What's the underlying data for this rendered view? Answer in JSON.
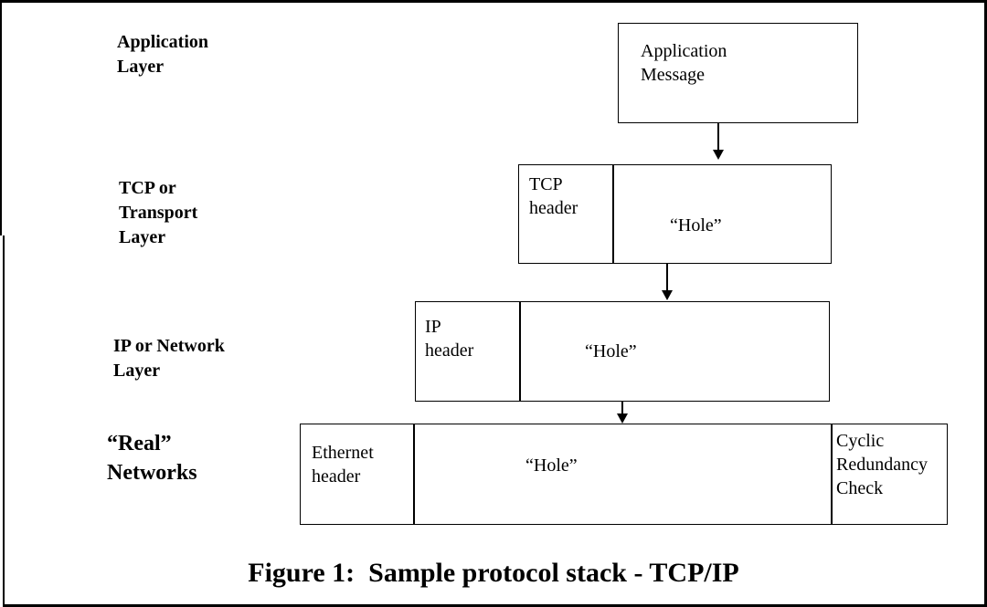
{
  "layers": {
    "application": "Application\nLayer",
    "transport": "TCP or\nTransport\nLayer",
    "network": "IP or Network\nLayer",
    "real": "“Real”\nNetworks"
  },
  "boxes": {
    "application_message": "Application\nMessage",
    "tcp_header": "TCP\nheader",
    "tcp_hole": "“Hole”",
    "ip_header": "IP\nheader",
    "ip_hole": "“Hole”",
    "ethernet_header": "Ethernet\nheader",
    "ethernet_hole": "“Hole”",
    "crc": "Cyclic\nRedundancy\nCheck"
  },
  "caption": "Figure 1:  Sample protocol stack - TCP/IP"
}
